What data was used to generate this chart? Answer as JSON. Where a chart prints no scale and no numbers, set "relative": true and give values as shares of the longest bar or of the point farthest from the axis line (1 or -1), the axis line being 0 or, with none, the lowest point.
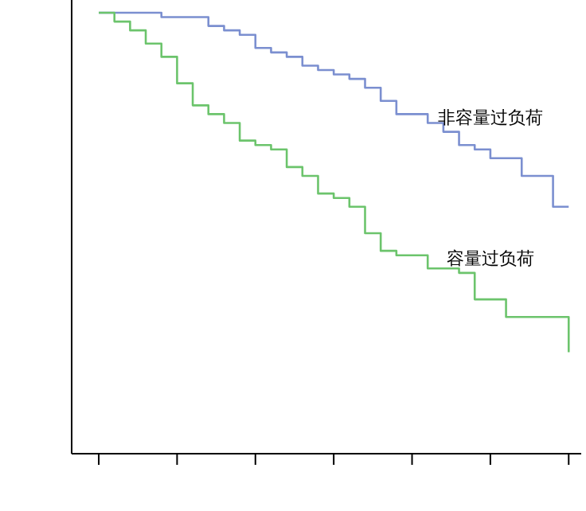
{
  "chart_data": {
    "type": "step",
    "relative": true,
    "categories": [
      null,
      null,
      null,
      null,
      null,
      null,
      null,
      null,
      null,
      null,
      null,
      null,
      null,
      null,
      null,
      null,
      null,
      null,
      null,
      null,
      null,
      null,
      null,
      null,
      null,
      null,
      null,
      null,
      null,
      null,
      null
    ],
    "series": [
      {
        "name": "非容量过负荷",
        "color": "#7b8fd0",
        "values": [
          1,
          1,
          1,
          1,
          0.99,
          0.99,
          0.99,
          0.97,
          0.96,
          0.95,
          0.92,
          0.91,
          0.9,
          0.88,
          0.87,
          0.86,
          0.85,
          0.83,
          0.8,
          0.77,
          0.77,
          0.75,
          0.73,
          0.7,
          0.69,
          0.67,
          0.67,
          0.63,
          0.63,
          0.56,
          0.56
        ]
      },
      {
        "name": "容量过负荷",
        "color": "#6cc46c",
        "values": [
          1,
          0.98,
          0.96,
          0.93,
          0.9,
          0.84,
          0.79,
          0.77,
          0.75,
          0.71,
          0.7,
          0.69,
          0.65,
          0.63,
          0.59,
          0.58,
          0.56,
          0.5,
          0.46,
          0.45,
          0.45,
          0.42,
          0.42,
          0.41,
          0.35,
          0.35,
          0.31,
          0.31,
          0.31,
          0.31,
          0.23
        ]
      }
    ]
  }
}
